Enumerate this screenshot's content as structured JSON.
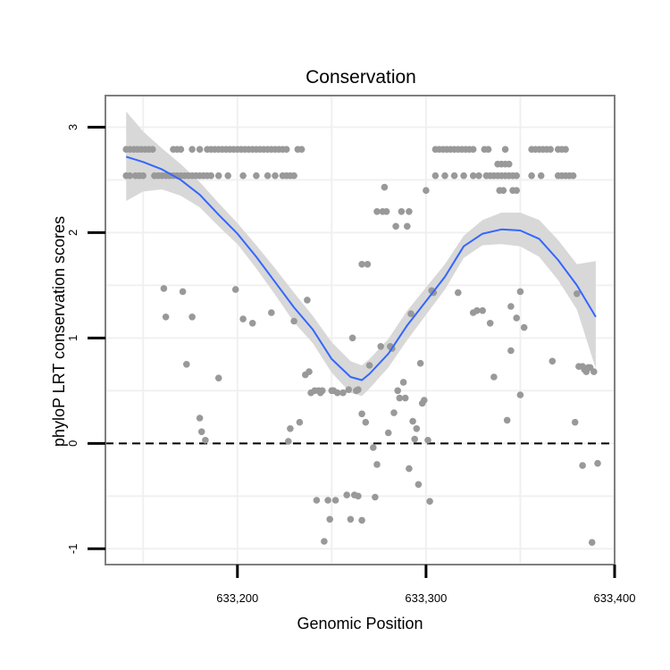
{
  "chart_data": {
    "type": "scatter",
    "title": "Conservation",
    "xlabel": "Genomic Position",
    "ylabel": "phyloP LRT conservation scores",
    "xlim": [
      633130,
      633400
    ],
    "ylim": [
      -1.15,
      3.3
    ],
    "xticks": [
      633200,
      633300,
      633400
    ],
    "xtick_labels": [
      "633,200",
      "633,300",
      "633,400"
    ],
    "yticks": [
      -1,
      0,
      1,
      2,
      3
    ],
    "ytick_labels": [
      "-1",
      "0",
      "1",
      "2",
      "3"
    ],
    "grid": true,
    "legend": "none",
    "reference_line": {
      "y": 0,
      "style": "dashed",
      "color": "#000000"
    },
    "points_color": "#999999",
    "smooth_color": "#3366ff",
    "band_color": "#d6d6d6",
    "points": [
      [
        633141,
        2.79
      ],
      [
        633143,
        2.79
      ],
      [
        633145,
        2.79
      ],
      [
        633147,
        2.79
      ],
      [
        633149,
        2.79
      ],
      [
        633151,
        2.79
      ],
      [
        633153,
        2.79
      ],
      [
        633155,
        2.79
      ],
      [
        633141,
        2.54
      ],
      [
        633143,
        2.54
      ],
      [
        633146,
        2.54
      ],
      [
        633148,
        2.54
      ],
      [
        633150,
        2.54
      ],
      [
        633156,
        2.54
      ],
      [
        633158,
        2.54
      ],
      [
        633160,
        2.54
      ],
      [
        633162,
        2.54
      ],
      [
        633164,
        2.54
      ],
      [
        633166,
        2.54
      ],
      [
        633168,
        2.54
      ],
      [
        633170,
        2.54
      ],
      [
        633172,
        2.54
      ],
      [
        633174,
        2.54
      ],
      [
        633176,
        2.54
      ],
      [
        633178,
        2.54
      ],
      [
        633180,
        2.54
      ],
      [
        633182,
        2.54
      ],
      [
        633184,
        2.54
      ],
      [
        633186,
        2.54
      ],
      [
        633190,
        2.54
      ],
      [
        633195,
        2.54
      ],
      [
        633203,
        2.54
      ],
      [
        633210,
        2.54
      ],
      [
        633216,
        2.54
      ],
      [
        633220,
        2.54
      ],
      [
        633224,
        2.54
      ],
      [
        633226,
        2.54
      ],
      [
        633228,
        2.54
      ],
      [
        633230,
        2.54
      ],
      [
        633166,
        2.79
      ],
      [
        633168,
        2.79
      ],
      [
        633170,
        2.79
      ],
      [
        633176,
        2.79
      ],
      [
        633180,
        2.79
      ],
      [
        633184,
        2.79
      ],
      [
        633186,
        2.79
      ],
      [
        633188,
        2.79
      ],
      [
        633190,
        2.79
      ],
      [
        633192,
        2.79
      ],
      [
        633194,
        2.79
      ],
      [
        633196,
        2.79
      ],
      [
        633198,
        2.79
      ],
      [
        633200,
        2.79
      ],
      [
        633202,
        2.79
      ],
      [
        633204,
        2.79
      ],
      [
        633206,
        2.79
      ],
      [
        633208,
        2.79
      ],
      [
        633210,
        2.79
      ],
      [
        633212,
        2.79
      ],
      [
        633214,
        2.79
      ],
      [
        633216,
        2.79
      ],
      [
        633218,
        2.79
      ],
      [
        633220,
        2.79
      ],
      [
        633222,
        2.79
      ],
      [
        633224,
        2.79
      ],
      [
        633226,
        2.79
      ],
      [
        633232,
        2.79
      ],
      [
        633234,
        2.79
      ],
      [
        633161,
        1.47
      ],
      [
        633162,
        1.2
      ],
      [
        633171,
        1.44
      ],
      [
        633173,
        0.75
      ],
      [
        633176,
        1.2
      ],
      [
        633180,
        0.24
      ],
      [
        633181,
        0.11
      ],
      [
        633183,
        0.03
      ],
      [
        633190,
        0.62
      ],
      [
        633199,
        1.46
      ],
      [
        633203,
        1.18
      ],
      [
        633208,
        1.14
      ],
      [
        633218,
        1.24
      ],
      [
        633227,
        0.02
      ],
      [
        633228,
        0.14
      ],
      [
        633230,
        1.16
      ],
      [
        633233,
        0.2
      ],
      [
        633236,
        0.65
      ],
      [
        633237,
        1.36
      ],
      [
        633238,
        0.68
      ],
      [
        633239,
        0.48
      ],
      [
        633241,
        0.5
      ],
      [
        633242,
        -0.54
      ],
      [
        633243,
        0.5
      ],
      [
        633244,
        0.48
      ],
      [
        633245,
        0.5
      ],
      [
        633246,
        -0.93
      ],
      [
        633248,
        -0.54
      ],
      [
        633249,
        -0.72
      ],
      [
        633250,
        0.5
      ],
      [
        633251,
        0.5
      ],
      [
        633252,
        -0.54
      ],
      [
        633253,
        0.48
      ],
      [
        633256,
        0.48
      ],
      [
        633258,
        -0.49
      ],
      [
        633259,
        0.51
      ],
      [
        633260,
        -0.72
      ],
      [
        633261,
        1.0
      ],
      [
        633262,
        -0.49
      ],
      [
        633263,
        0.5
      ],
      [
        633264,
        0.51
      ],
      [
        633264,
        -0.5
      ],
      [
        633266,
        1.7
      ],
      [
        633266,
        -0.73
      ],
      [
        633266,
        0.28
      ],
      [
        633268,
        0.2
      ],
      [
        633269,
        1.7
      ],
      [
        633270,
        0.74
      ],
      [
        633272,
        -0.04
      ],
      [
        633273,
        -0.51
      ],
      [
        633274,
        -0.2
      ],
      [
        633274,
        2.2
      ],
      [
        633276,
        0.92
      ],
      [
        633277,
        2.2
      ],
      [
        633278,
        2.43
      ],
      [
        633279,
        2.2
      ],
      [
        633280,
        0.1
      ],
      [
        633281,
        0.92
      ],
      [
        633282,
        0.9
      ],
      [
        633283,
        0.29
      ],
      [
        633284,
        2.06
      ],
      [
        633285,
        0.5
      ],
      [
        633286,
        0.43
      ],
      [
        633287,
        2.2
      ],
      [
        633288,
        0.58
      ],
      [
        633289,
        0.43
      ],
      [
        633290,
        2.06
      ],
      [
        633291,
        2.2
      ],
      [
        633291,
        -0.24
      ],
      [
        633292,
        1.23
      ],
      [
        633293,
        0.21
      ],
      [
        633294,
        0.04
      ],
      [
        633295,
        0.14
      ],
      [
        633296,
        -0.39
      ],
      [
        633297,
        0.76
      ],
      [
        633298,
        0.38
      ],
      [
        633299,
        0.41
      ],
      [
        633300,
        2.4
      ],
      [
        633301,
        0.03
      ],
      [
        633302,
        -0.55
      ],
      [
        633303,
        1.45
      ],
      [
        633304,
        1.43
      ],
      [
        633305,
        2.54
      ],
      [
        633305,
        2.79
      ],
      [
        633307,
        2.79
      ],
      [
        633309,
        2.79
      ],
      [
        633311,
        2.79
      ],
      [
        633313,
        2.79
      ],
      [
        633315,
        2.79
      ],
      [
        633317,
        2.79
      ],
      [
        633319,
        2.79
      ],
      [
        633321,
        2.79
      ],
      [
        633323,
        2.79
      ],
      [
        633325,
        2.79
      ],
      [
        633331,
        2.79
      ],
      [
        633333,
        2.79
      ],
      [
        633342,
        2.79
      ],
      [
        633310,
        2.54
      ],
      [
        633315,
        2.54
      ],
      [
        633320,
        2.54
      ],
      [
        633325,
        2.54
      ],
      [
        633328,
        2.54
      ],
      [
        633332,
        2.54
      ],
      [
        633334,
        2.54
      ],
      [
        633336,
        2.54
      ],
      [
        633338,
        2.54
      ],
      [
        633340,
        2.54
      ],
      [
        633342,
        2.54
      ],
      [
        633344,
        2.54
      ],
      [
        633346,
        2.54
      ],
      [
        633348,
        2.54
      ],
      [
        633338,
        2.65
      ],
      [
        633340,
        2.65
      ],
      [
        633342,
        2.65
      ],
      [
        633344,
        2.65
      ],
      [
        633339,
        2.4
      ],
      [
        633341,
        2.4
      ],
      [
        633346,
        2.4
      ],
      [
        633348,
        2.4
      ],
      [
        633317,
        1.43
      ],
      [
        633325,
        1.24
      ],
      [
        633327,
        1.26
      ],
      [
        633330,
        1.26
      ],
      [
        633334,
        1.14
      ],
      [
        633336,
        0.63
      ],
      [
        633343,
        0.22
      ],
      [
        633345,
        1.3
      ],
      [
        633345,
        0.88
      ],
      [
        633348,
        1.19
      ],
      [
        633350,
        0.46
      ],
      [
        633350,
        1.44
      ],
      [
        633352,
        1.1
      ],
      [
        633356,
        2.54
      ],
      [
        633361,
        2.54
      ],
      [
        633370,
        2.54
      ],
      [
        633372,
        2.54
      ],
      [
        633374,
        2.54
      ],
      [
        633376,
        2.54
      ],
      [
        633378,
        2.54
      ],
      [
        633356,
        2.79
      ],
      [
        633358,
        2.79
      ],
      [
        633360,
        2.79
      ],
      [
        633362,
        2.79
      ],
      [
        633364,
        2.79
      ],
      [
        633366,
        2.79
      ],
      [
        633370,
        2.79
      ],
      [
        633372,
        2.79
      ],
      [
        633374,
        2.79
      ],
      [
        633367,
        0.78
      ],
      [
        633379,
        0.2
      ],
      [
        633380,
        1.42
      ],
      [
        633381,
        0.73
      ],
      [
        633383,
        0.73
      ],
      [
        633383,
        -0.21
      ],
      [
        633384,
        0.7
      ],
      [
        633385,
        0.68
      ],
      [
        633386,
        0.72
      ],
      [
        633387,
        0.72
      ],
      [
        633388,
        -0.94
      ],
      [
        633389,
        0.68
      ],
      [
        633391,
        -0.19
      ]
    ],
    "smooth": {
      "x": [
        633141,
        633150,
        633160,
        633170,
        633180,
        633190,
        633200,
        633210,
        633220,
        633230,
        633240,
        633250,
        633260,
        633266,
        633270,
        633280,
        633290,
        633300,
        633310,
        633320,
        633330,
        633340,
        633350,
        633360,
        633370,
        633380,
        633390
      ],
      "y": [
        2.72,
        2.67,
        2.6,
        2.5,
        2.36,
        2.17,
        1.99,
        1.77,
        1.53,
        1.29,
        1.08,
        0.8,
        0.63,
        0.6,
        0.66,
        0.85,
        1.12,
        1.35,
        1.58,
        1.87,
        1.99,
        2.03,
        2.02,
        1.94,
        1.74,
        1.5,
        1.2
      ],
      "upper": [
        3.15,
        2.96,
        2.8,
        2.65,
        2.48,
        2.28,
        2.09,
        1.88,
        1.66,
        1.43,
        1.21,
        0.96,
        0.78,
        0.74,
        0.8,
        0.99,
        1.26,
        1.48,
        1.7,
        1.97,
        2.12,
        2.19,
        2.19,
        2.12,
        1.93,
        1.7,
        1.73
      ],
      "lower": [
        2.3,
        2.39,
        2.41,
        2.35,
        2.24,
        2.06,
        1.89,
        1.66,
        1.41,
        1.15,
        0.95,
        0.67,
        0.48,
        0.45,
        0.52,
        0.72,
        0.98,
        1.22,
        1.46,
        1.76,
        1.88,
        1.89,
        1.87,
        1.77,
        1.55,
        1.27,
        0.71
      ]
    }
  }
}
